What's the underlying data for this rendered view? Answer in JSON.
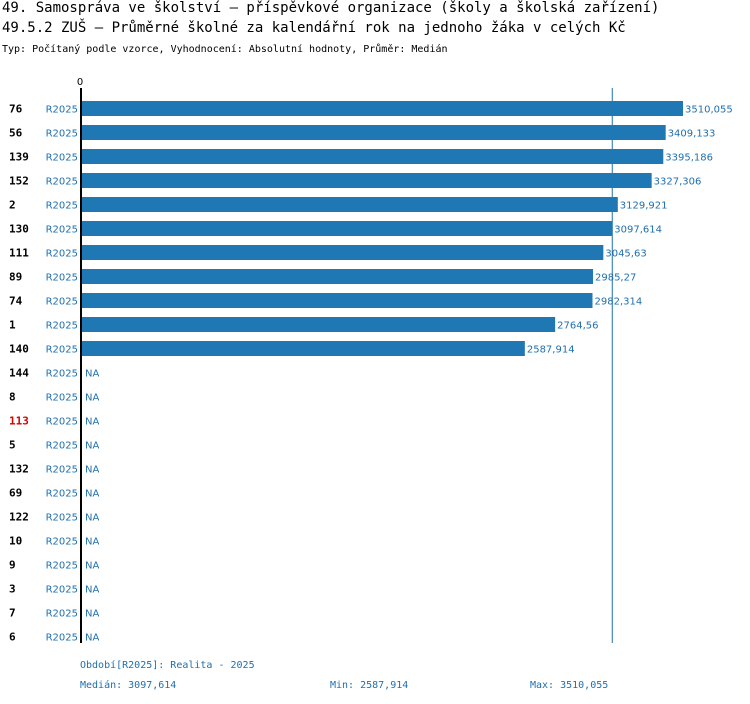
{
  "header": {
    "title1": "49. Samospráva ve školství – příspěvkové organizace (školy a školská zařízení)",
    "title2": "49.5.2 ZUŠ – Průměrné školné za kalendářní rok na jednoho žáka v celých Kč",
    "subtitle": "Typ: Počítaný podle vzorce, Vyhodnocení: Absolutní hodnoty, Průměr: Medián"
  },
  "colors": {
    "bar": "#1f77b4",
    "text": "#1f6fae",
    "highlight": "#d40000",
    "axis": "#000000",
    "median_line": "#1f6fae"
  },
  "chart_data": {
    "type": "bar",
    "orientation": "horizontal",
    "axis_zero_label": "0",
    "xlim": [
      0,
      3510.055
    ],
    "median": 3097.614,
    "highlight_id": "113",
    "rows": [
      {
        "id": "76",
        "period": "R2025",
        "value": 3510.055,
        "label": "3510,055"
      },
      {
        "id": "56",
        "period": "R2025",
        "value": 3409.133,
        "label": "3409,133"
      },
      {
        "id": "139",
        "period": "R2025",
        "value": 3395.186,
        "label": "3395,186"
      },
      {
        "id": "152",
        "period": "R2025",
        "value": 3327.306,
        "label": "3327,306"
      },
      {
        "id": "2",
        "period": "R2025",
        "value": 3129.921,
        "label": "3129,921"
      },
      {
        "id": "130",
        "period": "R2025",
        "value": 3097.614,
        "label": "3097,614"
      },
      {
        "id": "111",
        "period": "R2025",
        "value": 3045.63,
        "label": "3045,63"
      },
      {
        "id": "89",
        "period": "R2025",
        "value": 2985.27,
        "label": "2985,27"
      },
      {
        "id": "74",
        "period": "R2025",
        "value": 2982.314,
        "label": "2982,314"
      },
      {
        "id": "1",
        "period": "R2025",
        "value": 2764.56,
        "label": "2764,56"
      },
      {
        "id": "140",
        "period": "R2025",
        "value": 2587.914,
        "label": "2587,914"
      },
      {
        "id": "144",
        "period": "R2025",
        "value": null,
        "label": "NA"
      },
      {
        "id": "8",
        "period": "R2025",
        "value": null,
        "label": "NA"
      },
      {
        "id": "113",
        "period": "R2025",
        "value": null,
        "label": "NA"
      },
      {
        "id": "5",
        "period": "R2025",
        "value": null,
        "label": "NA"
      },
      {
        "id": "132",
        "period": "R2025",
        "value": null,
        "label": "NA"
      },
      {
        "id": "69",
        "period": "R2025",
        "value": null,
        "label": "NA"
      },
      {
        "id": "122",
        "period": "R2025",
        "value": null,
        "label": "NA"
      },
      {
        "id": "10",
        "period": "R2025",
        "value": null,
        "label": "NA"
      },
      {
        "id": "9",
        "period": "R2025",
        "value": null,
        "label": "NA"
      },
      {
        "id": "3",
        "period": "R2025",
        "value": null,
        "label": "NA"
      },
      {
        "id": "7",
        "period": "R2025",
        "value": null,
        "label": "NA"
      },
      {
        "id": "6",
        "period": "R2025",
        "value": null,
        "label": "NA"
      }
    ]
  },
  "footer": {
    "period": "Období[R2025]: Realita - 2025",
    "median": "Medián: 3097,614",
    "min": "Min: 2587,914",
    "max": "Max: 3510,055"
  }
}
